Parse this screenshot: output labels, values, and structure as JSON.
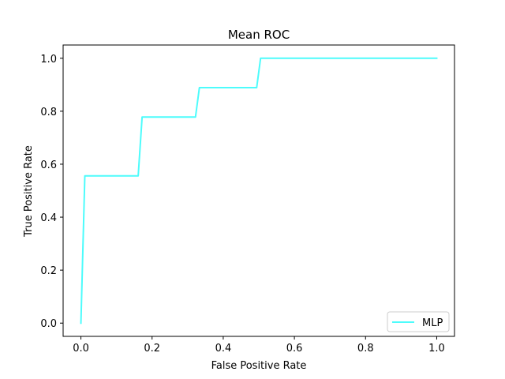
{
  "chart_data": {
    "type": "line",
    "title": "Mean ROC",
    "xlabel": "False Positive Rate",
    "ylabel": "True Positive Rate",
    "xlim": [
      -0.05,
      1.05
    ],
    "ylim": [
      -0.05,
      1.05
    ],
    "xticks": [
      0.0,
      0.2,
      0.4,
      0.6,
      0.8,
      1.0
    ],
    "yticks": [
      0.0,
      0.2,
      0.4,
      0.6,
      0.8,
      1.0
    ],
    "xtick_labels": [
      "0.0",
      "0.2",
      "0.4",
      "0.6",
      "0.8",
      "1.0"
    ],
    "ytick_labels": [
      "0.0",
      "0.2",
      "0.4",
      "0.6",
      "0.8",
      "1.0"
    ],
    "grid": false,
    "legend": {
      "placement": "lower-right",
      "entries": [
        "MLP"
      ]
    },
    "series": [
      {
        "name": "MLP",
        "color": "#4dfcfc",
        "x": [
          0.0,
          0.011,
          0.161,
          0.172,
          0.322,
          0.333,
          0.494,
          0.505,
          1.0
        ],
        "y": [
          0.0,
          0.556,
          0.556,
          0.778,
          0.778,
          0.889,
          0.889,
          1.0,
          1.0
        ]
      }
    ]
  }
}
